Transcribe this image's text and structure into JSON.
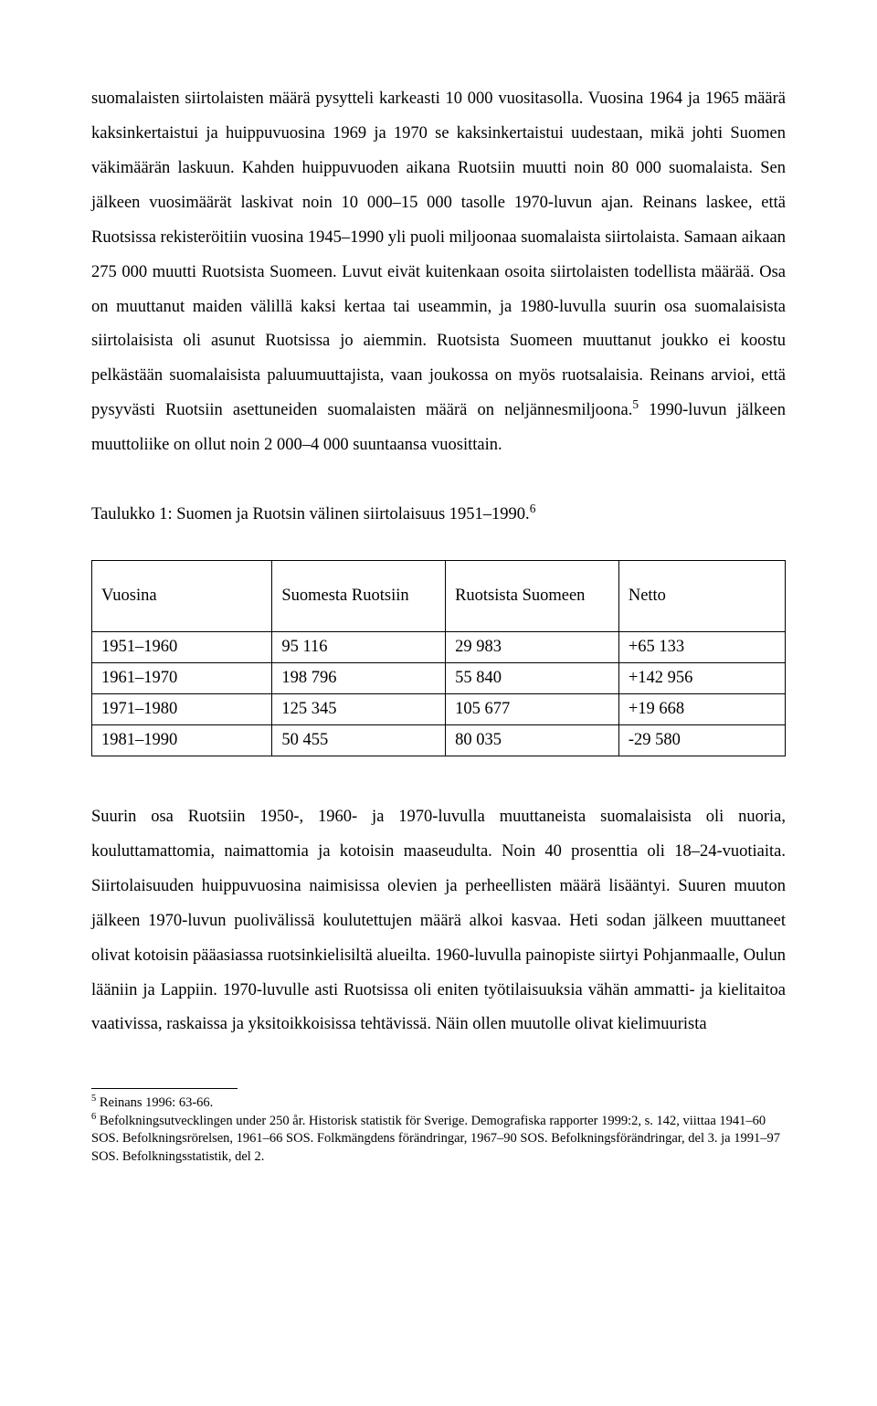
{
  "body": {
    "para1_a": "suomalaisten siirtolaisten määrä pysytteli karkeasti 10 000 vuositasolla. Vuosina 1964 ja 1965 määrä kaksinkertaistui ja huippuvuosina 1969 ja 1970 se kaksinkertaistui uudestaan, mikä johti Suomen väkimäärän laskuun. Kahden huippuvuoden aikana Ruotsiin muutti noin 80 000 suomalaista. Sen jälkeen vuosimäärät laskivat noin 10 000–15 000 tasolle 1970-luvun ajan. Reinans laskee, että Ruotsissa rekisteröitiin vuosina 1945–1990 yli puoli miljoonaa suomalaista siirtolaista. Samaan aikaan 275 000 muutti Ruotsista Suomeen. Luvut eivät kuitenkaan osoita siirtolaisten todellista määrää. Osa on muuttanut maiden välillä kaksi kertaa tai useammin, ja 1980-luvulla suurin osa suomalaisista siirtolaisista oli asunut Ruotsissa jo aiemmin. Ruotsista Suomeen muuttanut joukko ei koostu pelkästään suomalaisista paluumuuttajista, vaan joukossa on myös ruotsalaisia. Reinans arvioi, että pysyvästi Ruotsiin asettuneiden suomalaisten määrä on neljännesmiljoona.",
    "fn5_marker": "5",
    "para1_b": " 1990-luvun jälkeen muuttoliike on ollut noin 2 000–4 000 suuntaansa vuosittain.",
    "table_title_a": "Taulukko 1: Suomen ja Ruotsin välinen siirtolaisuus 1951–1990.",
    "fn6_marker": "6",
    "para2": "Suurin osa Ruotsiin 1950-, 1960- ja 1970-luvulla muuttaneista suomalaisista oli nuoria, kouluttamattomia, naimattomia ja kotoisin maaseudulta. Noin 40 prosenttia oli 18–24-vuotiaita. Siirtolaisuuden huippuvuosina naimisissa olevien ja perheellisten määrä lisääntyi. Suuren muuton jälkeen 1970-luvun puolivälissä koulutettujen määrä alkoi kasvaa. Heti sodan jälkeen muuttaneet olivat kotoisin pääasiassa ruotsinkielisiltä alueilta. 1960-luvulla painopiste siirtyi Pohjanmaalle, Oulun lääniin ja Lappiin. 1970-luvulle asti Ruotsissa oli eniten työtilaisuuksia vähän ammatti- ja kielitaitoa vaativissa, raskaissa ja yksitoikkoisissa tehtävissä. Näin ollen muutolle olivat kielimuurista"
  },
  "table": {
    "headers": [
      "Vuosina",
      "Suomesta Ruotsiin",
      "Ruotsista Suomeen",
      "Netto"
    ],
    "rows": [
      [
        "1951–1960",
        "95 116",
        "29 983",
        "+65 133"
      ],
      [
        "1961–1970",
        "198 796",
        "55 840",
        "+142 956"
      ],
      [
        "1971–1980",
        "125 345",
        "105 677",
        "+19 668"
      ],
      [
        "1981–1990",
        "50 455",
        "80 035",
        "-29 580"
      ]
    ],
    "col_widths": [
      "26%",
      "25%",
      "25%",
      "24%"
    ]
  },
  "footnotes": {
    "fn5": "Reinans 1996: 63-66.",
    "fn6": "Befolkningsutvecklingen under 250 år. Historisk statistik för Sverige. Demografiska rapporter 1999:2, s. 142, viittaa 1941–60 SOS. Befolkningsrörelsen, 1961–66 SOS. Folkmängdens förändringar, 1967–90 SOS. Befolkningsförändringar, del 3. ja 1991–97 SOS. Befolkningsstatistik, del 2."
  },
  "style": {
    "font_family": "Times New Roman",
    "body_font_size_pt": 14,
    "footnote_font_size_pt": 11,
    "text_color": "#000000",
    "background_color": "#ffffff",
    "border_color": "#000000"
  }
}
